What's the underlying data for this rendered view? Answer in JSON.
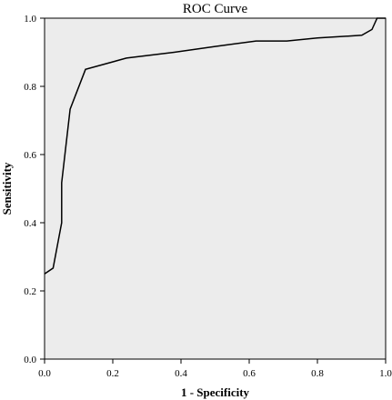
{
  "chart_data": {
    "type": "line",
    "title": "ROC Curve",
    "xlabel": "1 - Specificity",
    "ylabel": "Sensitivity",
    "xlim": [
      0.0,
      1.0
    ],
    "ylim": [
      0.0,
      1.0
    ],
    "x_ticks": [
      "0.0",
      "0.2",
      "0.4",
      "0.6",
      "0.8",
      "1.0"
    ],
    "y_ticks": [
      "0.0",
      "0.2",
      "0.4",
      "0.6",
      "0.8",
      "1.0"
    ],
    "grid": false,
    "colors": {
      "plot_background": "#ececec",
      "line": "#000000"
    },
    "series": [
      {
        "x": [
          0.0,
          0.025,
          0.05,
          0.05,
          0.075,
          0.12,
          0.24,
          0.38,
          0.5,
          0.62,
          0.71,
          0.8,
          0.93,
          0.96,
          0.975,
          1.0
        ],
        "y": [
          0.25,
          0.267,
          0.4,
          0.517,
          0.733,
          0.85,
          0.883,
          0.9,
          0.917,
          0.933,
          0.933,
          0.942,
          0.95,
          0.967,
          1.0,
          1.0
        ]
      }
    ]
  }
}
